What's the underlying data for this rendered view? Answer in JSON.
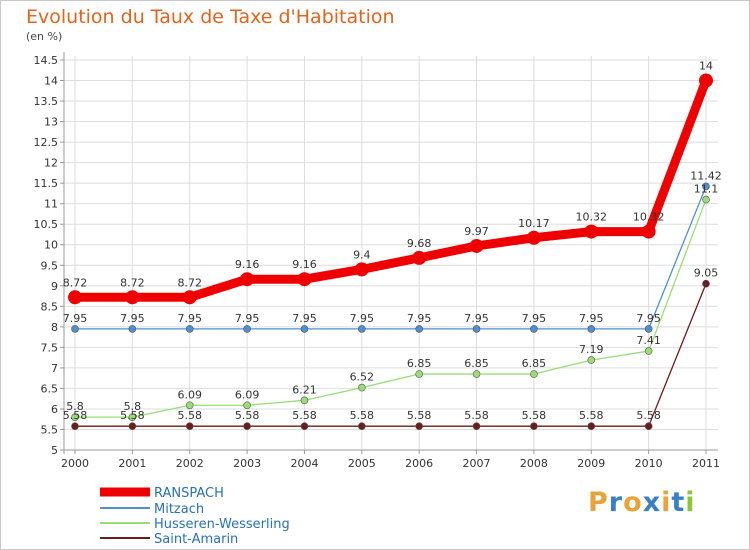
{
  "header": {
    "title": "Evolution du Taux de Taxe d'Habitation",
    "subtitle": "(en %)"
  },
  "colors": {
    "ranspach": "#ee0000",
    "mitzach": "#4f8fcf",
    "husseren": "#99dd77",
    "saint_amarin": "#6b1c1c",
    "axis": "#999999",
    "grid": "#dddddd"
  },
  "chart_data": {
    "type": "line",
    "title": "Evolution du Taux de Taxe d'Habitation",
    "subtitle": "(en %)",
    "x": [
      "2000",
      "2001",
      "2002",
      "2003",
      "2004",
      "2005",
      "2006",
      "2007",
      "2008",
      "2009",
      "2010",
      "2011"
    ],
    "ylim": [
      5,
      14.5
    ],
    "yticks": [
      "5",
      "5.5",
      "6",
      "6.5",
      "7",
      "7.5",
      "8",
      "8.5",
      "9",
      "9.5",
      "10",
      "10.5",
      "11",
      "11.5",
      "12",
      "12.5",
      "13",
      "13.5",
      "14",
      "14.5"
    ],
    "grid": true,
    "legend_position": "bottom-left",
    "series": [
      {
        "name": "RANSPACH",
        "color": "#ee0000",
        "values": [
          8.72,
          8.72,
          8.72,
          9.16,
          9.16,
          9.4,
          9.68,
          9.97,
          10.17,
          10.32,
          10.32,
          14
        ],
        "labels": [
          "8.72",
          "8.72",
          "8.72",
          "9.16",
          "9.16",
          "9.4",
          "9.68",
          "9.97",
          "10.17",
          "10.32",
          "10.32",
          "14"
        ]
      },
      {
        "name": "Mitzach",
        "color": "#4f8fcf",
        "values": [
          7.95,
          7.95,
          7.95,
          7.95,
          7.95,
          7.95,
          7.95,
          7.95,
          7.95,
          7.95,
          7.95,
          11.42
        ],
        "labels": [
          "7.95",
          "7.95",
          "7.95",
          "7.95",
          "7.95",
          "7.95",
          "7.95",
          "7.95",
          "7.95",
          "7.95",
          "7.95",
          "11.42"
        ]
      },
      {
        "name": "Husseren-Wesserling",
        "color": "#99dd77",
        "values": [
          5.8,
          5.8,
          6.09,
          6.09,
          6.21,
          6.52,
          6.85,
          6.85,
          6.85,
          7.19,
          7.41,
          11.1
        ],
        "labels": [
          "5.8",
          "5.8",
          "6.09",
          "6.09",
          "6.21",
          "6.52",
          "6.85",
          "6.85",
          "6.85",
          "7.19",
          "7.41",
          "11.1"
        ]
      },
      {
        "name": "Saint-Amarin",
        "color": "#6b1c1c",
        "values": [
          5.58,
          5.58,
          5.58,
          5.58,
          5.58,
          5.58,
          5.58,
          5.58,
          5.58,
          5.58,
          5.58,
          9.05
        ],
        "labels": [
          "5.58",
          "5.58",
          "5.58",
          "5.58",
          "5.58",
          "5.58",
          "5.58",
          "5.58",
          "5.58",
          "5.58",
          "5.58",
          "9.05"
        ]
      }
    ]
  },
  "logo": {
    "letters": [
      "P",
      "r",
      "o",
      "x",
      "i",
      "t",
      "i"
    ],
    "colors": [
      "#e8a33b",
      "#3b7fc4",
      "#e8a33b",
      "#3b7fc4",
      "#e8a33b",
      "#3b7fc4",
      "#8cc63e"
    ]
  }
}
